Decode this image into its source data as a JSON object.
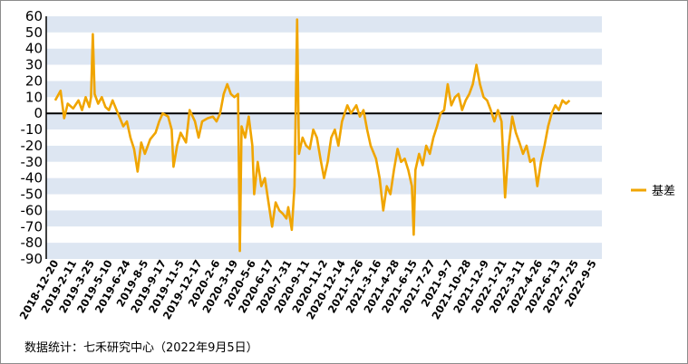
{
  "chart_data": {
    "type": "line",
    "ylim": [
      -90,
      60
    ],
    "yticks": [
      60,
      50,
      40,
      30,
      20,
      10,
      0,
      -10,
      -20,
      -30,
      -40,
      -50,
      -60,
      -70,
      -80,
      -90
    ],
    "x_tick_labels": [
      "2018-12-20",
      "2019-2-11",
      "2019-3-25",
      "2019-5-10",
      "2019-6-24",
      "2019-8-5",
      "2019-9-17",
      "2019-11-5",
      "2019-12-17",
      "2020-2-6",
      "2020-3-19",
      "2020-5-6",
      "2020-6-17",
      "2020-7-31",
      "2020-9-11",
      "2020-11-2",
      "2020-12-14",
      "2021-1-26",
      "2021-3-16",
      "2021-4-28",
      "2021-6-15",
      "2021-7-27",
      "2021-9-7",
      "2021-10-28",
      "2021-12-9",
      "2022-1-21",
      "2022-3-11",
      "2022-4-26",
      "2022-6-13",
      "2022-7-25",
      "2022-9-5"
    ],
    "grid": "horizontal-bands",
    "legend_position": "right",
    "series": [
      {
        "name": "基差",
        "color": "#f0a500",
        "values": [
          [
            0,
            8
          ],
          [
            0.3,
            14
          ],
          [
            0.5,
            -3
          ],
          [
            0.7,
            6
          ],
          [
            1,
            3
          ],
          [
            1.3,
            8
          ],
          [
            1.5,
            2
          ],
          [
            1.7,
            10
          ],
          [
            1.9,
            4
          ],
          [
            2.0,
            10
          ],
          [
            2.1,
            49
          ],
          [
            2.2,
            12
          ],
          [
            2.4,
            6
          ],
          [
            2.6,
            10
          ],
          [
            2.8,
            4
          ],
          [
            3.0,
            2
          ],
          [
            3.2,
            8
          ],
          [
            3.5,
            0
          ],
          [
            3.8,
            -8
          ],
          [
            4.0,
            -5
          ],
          [
            4.2,
            -15
          ],
          [
            4.4,
            -22
          ],
          [
            4.6,
            -36
          ],
          [
            4.8,
            -18
          ],
          [
            5.0,
            -25
          ],
          [
            5.3,
            -16
          ],
          [
            5.6,
            -12
          ],
          [
            5.8,
            -5
          ],
          [
            6.0,
            0
          ],
          [
            6.3,
            -2
          ],
          [
            6.5,
            -10
          ],
          [
            6.6,
            -33
          ],
          [
            6.8,
            -20
          ],
          [
            7.0,
            -12
          ],
          [
            7.3,
            -18
          ],
          [
            7.5,
            2
          ],
          [
            7.8,
            -5
          ],
          [
            8.0,
            -15
          ],
          [
            8.2,
            -5
          ],
          [
            8.5,
            -3
          ],
          [
            8.8,
            -2
          ],
          [
            9.0,
            -5
          ],
          [
            9.2,
            0
          ],
          [
            9.4,
            12
          ],
          [
            9.6,
            18
          ],
          [
            9.8,
            12
          ],
          [
            10.0,
            10
          ],
          [
            10.2,
            12
          ],
          [
            10.3,
            -85
          ],
          [
            10.4,
            -8
          ],
          [
            10.6,
            -15
          ],
          [
            10.8,
            -2
          ],
          [
            11.0,
            -20
          ],
          [
            11.1,
            -50
          ],
          [
            11.3,
            -30
          ],
          [
            11.5,
            -45
          ],
          [
            11.7,
            -40
          ],
          [
            11.9,
            -55
          ],
          [
            12.1,
            -70
          ],
          [
            12.3,
            -55
          ],
          [
            12.5,
            -60
          ],
          [
            12.7,
            -62
          ],
          [
            12.9,
            -65
          ],
          [
            13.0,
            -58
          ],
          [
            13.2,
            -72
          ],
          [
            13.35,
            -45
          ],
          [
            13.5,
            58
          ],
          [
            13.6,
            -25
          ],
          [
            13.8,
            -15
          ],
          [
            14.0,
            -20
          ],
          [
            14.2,
            -22
          ],
          [
            14.4,
            -10
          ],
          [
            14.6,
            -15
          ],
          [
            14.8,
            -28
          ],
          [
            15.0,
            -40
          ],
          [
            15.2,
            -30
          ],
          [
            15.4,
            -15
          ],
          [
            15.6,
            -10
          ],
          [
            15.8,
            -20
          ],
          [
            16.0,
            -5
          ],
          [
            16.3,
            5
          ],
          [
            16.5,
            0
          ],
          [
            16.8,
            5
          ],
          [
            17.0,
            -2
          ],
          [
            17.2,
            2
          ],
          [
            17.4,
            -10
          ],
          [
            17.6,
            -20
          ],
          [
            17.9,
            -28
          ],
          [
            18.1,
            -40
          ],
          [
            18.3,
            -60
          ],
          [
            18.5,
            -45
          ],
          [
            18.7,
            -50
          ],
          [
            18.9,
            -35
          ],
          [
            19.1,
            -22
          ],
          [
            19.3,
            -30
          ],
          [
            19.5,
            -28
          ],
          [
            19.7,
            -35
          ],
          [
            19.9,
            -45
          ],
          [
            20.0,
            -75
          ],
          [
            20.1,
            -35
          ],
          [
            20.3,
            -25
          ],
          [
            20.5,
            -32
          ],
          [
            20.7,
            -20
          ],
          [
            20.9,
            -25
          ],
          [
            21.1,
            -15
          ],
          [
            21.3,
            -8
          ],
          [
            21.5,
            0
          ],
          [
            21.7,
            2
          ],
          [
            21.9,
            18
          ],
          [
            22.1,
            5
          ],
          [
            22.3,
            10
          ],
          [
            22.5,
            12
          ],
          [
            22.7,
            2
          ],
          [
            22.9,
            8
          ],
          [
            23.1,
            12
          ],
          [
            23.3,
            18
          ],
          [
            23.5,
            30
          ],
          [
            23.7,
            18
          ],
          [
            23.9,
            10
          ],
          [
            24.1,
            8
          ],
          [
            24.3,
            2
          ],
          [
            24.5,
            -5
          ],
          [
            24.7,
            2
          ],
          [
            24.9,
            -5
          ],
          [
            25.1,
            -52
          ],
          [
            25.3,
            -20
          ],
          [
            25.5,
            -2
          ],
          [
            25.7,
            -12
          ],
          [
            25.9,
            -18
          ],
          [
            26.1,
            -25
          ],
          [
            26.3,
            -20
          ],
          [
            26.5,
            -30
          ],
          [
            26.7,
            -28
          ],
          [
            26.9,
            -45
          ],
          [
            27.1,
            -30
          ],
          [
            27.3,
            -20
          ],
          [
            27.5,
            -8
          ],
          [
            27.7,
            0
          ],
          [
            27.9,
            5
          ],
          [
            28.1,
            2
          ],
          [
            28.3,
            8
          ],
          [
            28.5,
            6
          ],
          [
            28.7,
            8
          ]
        ]
      }
    ],
    "legend_label": "基差"
  },
  "footer": {
    "source_text": "数据统计：七禾研究中心（2022年9月5日）"
  }
}
